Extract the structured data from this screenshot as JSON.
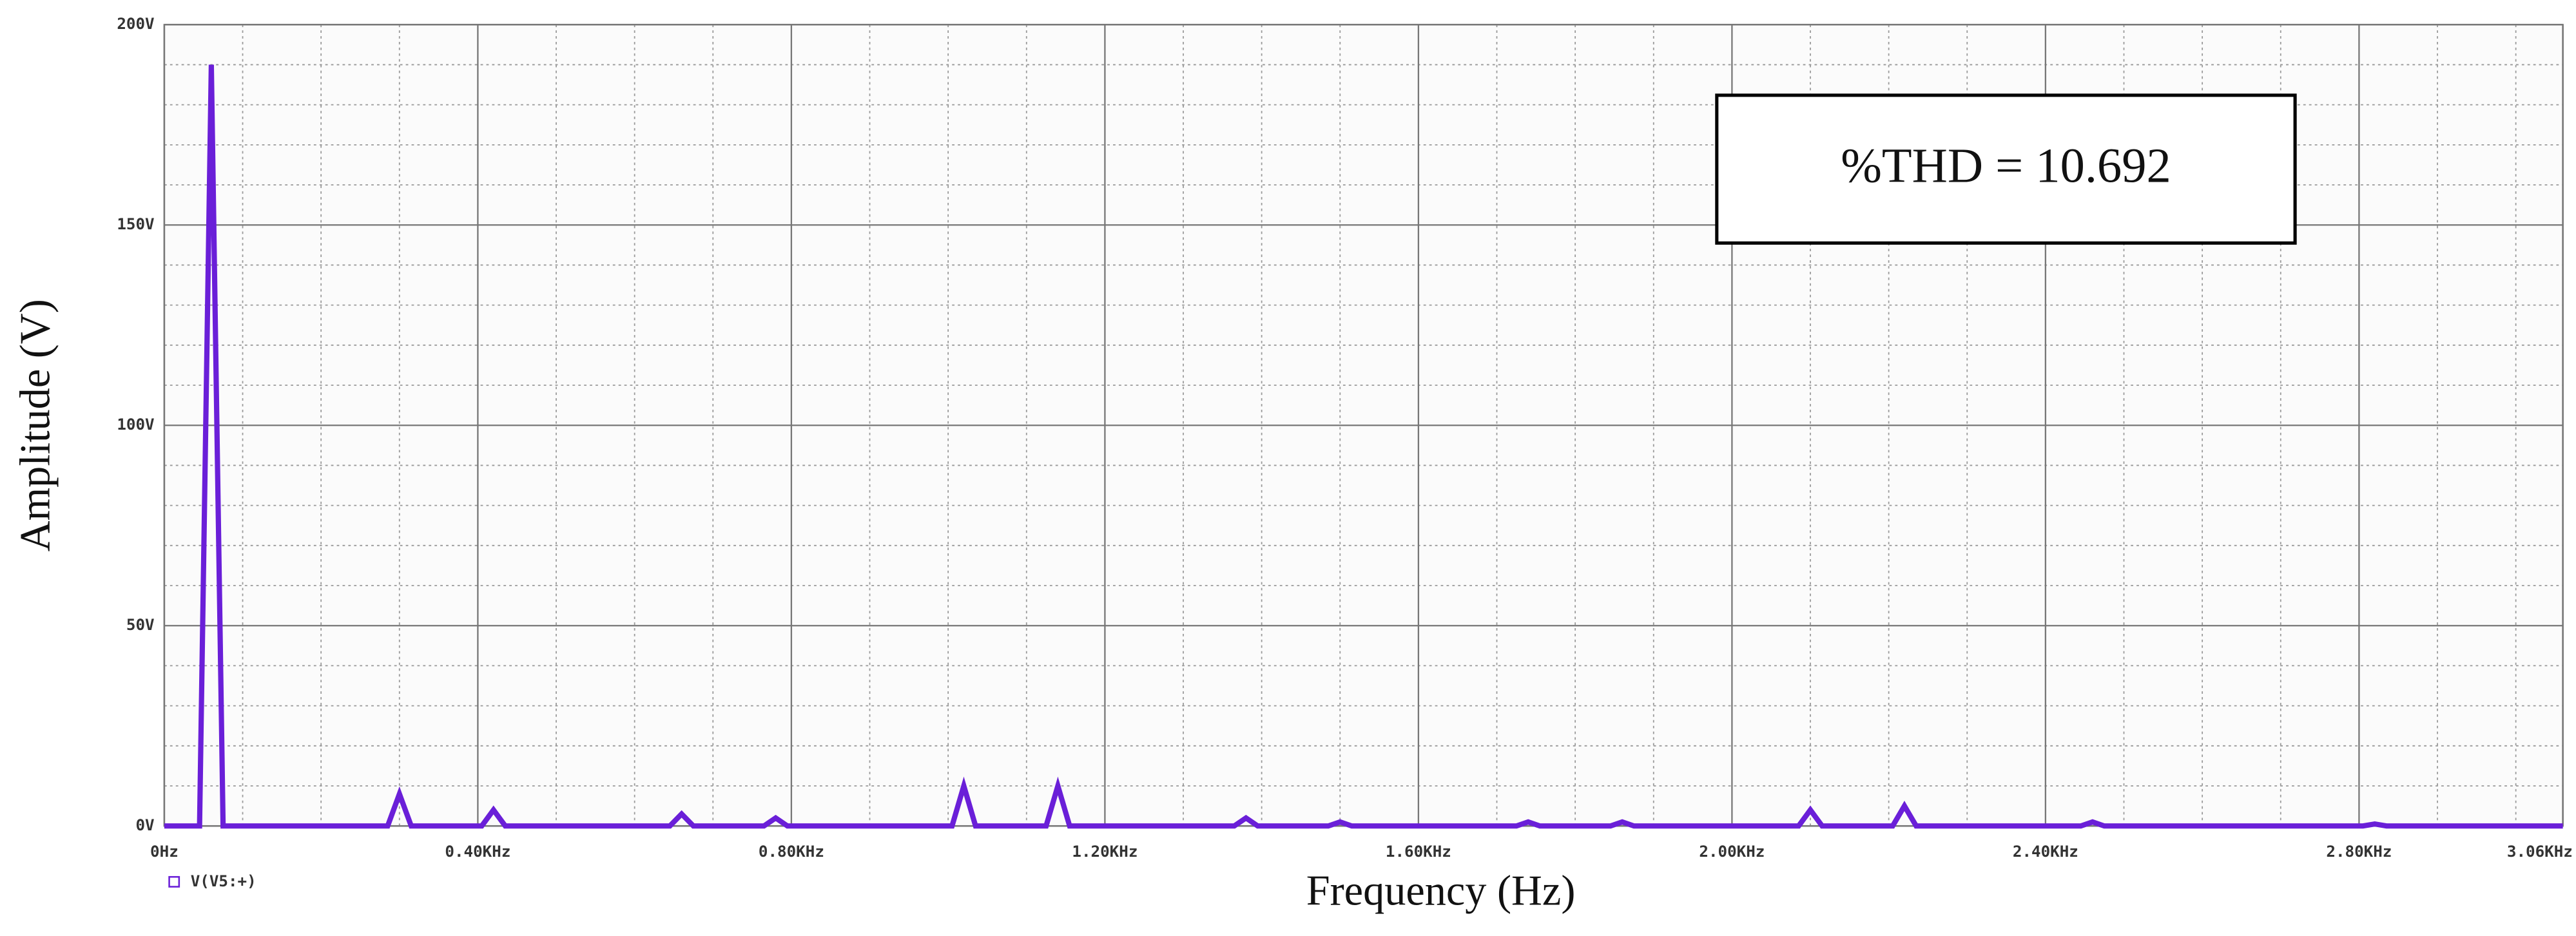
{
  "chart_data": {
    "type": "line",
    "annotation": "%THD = 10.692",
    "x_label": "Frequency (Hz)",
    "y_label": "Amplitude (V)",
    "xlim": [
      0,
      3.06
    ],
    "ylim": [
      0,
      200
    ],
    "xticks": [
      {
        "value": 0,
        "label": "0Hz"
      },
      {
        "value": 0.4,
        "label": "0.40KHz"
      },
      {
        "value": 0.8,
        "label": "0.80KHz"
      },
      {
        "value": 1.2,
        "label": "1.20KHz"
      },
      {
        "value": 1.6,
        "label": "1.60KHz"
      },
      {
        "value": 2.0,
        "label": "2.00KHz"
      },
      {
        "value": 2.4,
        "label": "2.40KHz"
      },
      {
        "value": 2.8,
        "label": "2.80KHz"
      },
      {
        "value": 3.06,
        "label": "3.06KHz"
      }
    ],
    "yticks": [
      {
        "value": 0,
        "label": "0V"
      },
      {
        "value": 50,
        "label": "50V"
      },
      {
        "value": 100,
        "label": "100V"
      },
      {
        "value": 150,
        "label": "150V"
      },
      {
        "value": 200,
        "label": "200V"
      }
    ],
    "grid": true,
    "series": [
      {
        "name": "V(V5:+)",
        "color": "#6a1fd8",
        "x": [
          0,
          0.045,
          0.06,
          0.075,
          0.285,
          0.3,
          0.315,
          0.405,
          0.42,
          0.435,
          0.645,
          0.66,
          0.675,
          0.765,
          0.78,
          0.795,
          1.005,
          1.02,
          1.035,
          1.125,
          1.14,
          1.155,
          1.365,
          1.38,
          1.395,
          1.485,
          1.5,
          1.515,
          1.725,
          1.74,
          1.755,
          1.845,
          1.86,
          1.875,
          2.085,
          2.1,
          2.115,
          2.205,
          2.22,
          2.235,
          2.445,
          2.46,
          2.475,
          2.805,
          2.82,
          2.835,
          3.06
        ],
        "values": [
          0,
          0,
          190,
          0,
          0,
          8,
          0,
          0,
          4,
          0,
          0,
          3,
          0,
          0,
          2,
          0,
          0,
          10,
          0,
          0,
          10,
          0,
          0,
          2,
          0,
          0,
          1,
          0,
          0,
          1,
          0,
          0,
          1,
          0,
          0,
          4,
          0,
          0,
          5,
          0,
          0,
          1,
          0,
          0,
          0.5,
          0,
          0
        ]
      }
    ]
  }
}
